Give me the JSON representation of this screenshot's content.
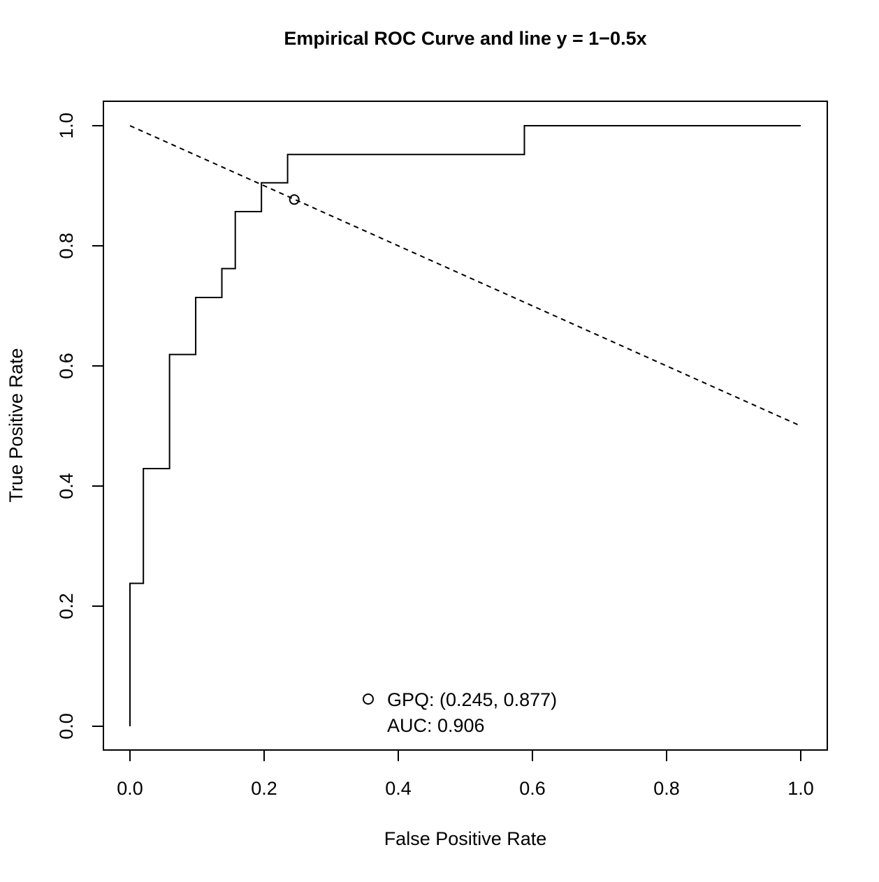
{
  "chart_data": {
    "type": "line",
    "title": "Empirical ROC Curve and line y = 1−0.5x",
    "xlabel": "False Positive Rate",
    "ylabel": "True Positive Rate",
    "xlim": [
      0,
      1
    ],
    "ylim": [
      0,
      1
    ],
    "x_ticks": [
      0,
      0.2,
      0.4,
      0.6,
      0.8,
      1
    ],
    "x_tick_labels": [
      "0.0",
      "0.2",
      "0.4",
      "0.6",
      "0.8",
      "1.0"
    ],
    "y_ticks": [
      0,
      0.2,
      0.4,
      0.6,
      0.8,
      1
    ],
    "y_tick_labels": [
      "0.0",
      "0.2",
      "0.4",
      "0.6",
      "0.8",
      "1.0"
    ],
    "grid": false,
    "legend_position": "bottom-center",
    "series": [
      {
        "style": "step",
        "line": "solid",
        "x": [
          0,
          0,
          0.02,
          0.02,
          0.059,
          0.059,
          0.098,
          0.098,
          0.137,
          0.137,
          0.157,
          0.157,
          0.196,
          0.196,
          0.235,
          0.235,
          0.588,
          0.588,
          1.0
        ],
        "y": [
          0,
          0.238,
          0.238,
          0.429,
          0.429,
          0.619,
          0.619,
          0.714,
          0.714,
          0.762,
          0.762,
          0.857,
          0.857,
          0.905,
          0.905,
          0.952,
          0.952,
          1.0,
          1.0
        ]
      },
      {
        "style": "line",
        "line": "dashed",
        "x": [
          0,
          1
        ],
        "y": [
          1,
          0.5
        ]
      }
    ],
    "points": [
      {
        "x": 0.245,
        "y": 0.877,
        "marker": "open-circle"
      }
    ],
    "legend": {
      "lines": [
        "GPQ: (0.245, 0.877)",
        "AUC:  0.906"
      ]
    }
  }
}
